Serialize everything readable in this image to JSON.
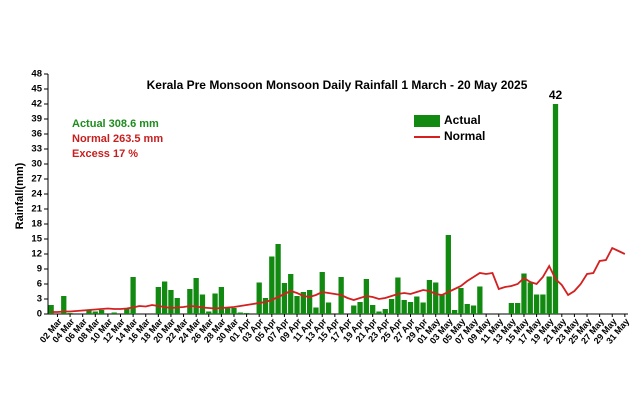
{
  "chart_data": {
    "type": "bar_line",
    "title": "Kerala Pre Monsoon  Monsoon Daily Rainfall 1 March - 20 May  2025",
    "y_label": "Rainfall(mm)",
    "annotations": [
      {
        "text": "Actual 308.6 mm",
        "color": "#1e8c1e"
      },
      {
        "text": "Normal 263.5 mm",
        "color": "#c81e1e"
      },
      {
        "text": "Excess  17 %",
        "color": "#c81e1e"
      }
    ],
    "categories": [
      null,
      "02 Mar",
      null,
      "04 Mar",
      null,
      "06 Mar",
      null,
      "08 Mar",
      null,
      "10 Mar",
      null,
      "12 Mar",
      null,
      "14 Mar",
      null,
      "16 Mar",
      null,
      "18 Mar",
      null,
      "20 Mar",
      null,
      "22 Mar",
      null,
      "24 Mar",
      null,
      "26 Mar",
      null,
      "28 Mar",
      null,
      "30 Mar",
      null,
      "01 Apr",
      null,
      "03 Apr",
      null,
      "05 Apr",
      null,
      "07 Apr",
      null,
      "09 Apr",
      null,
      "11 Apr",
      null,
      "13 Apr",
      null,
      "15 Apr",
      null,
      "17 Apr",
      null,
      "19 Apr",
      null,
      "21 Apr",
      null,
      "23 Apr",
      null,
      "25 Apr",
      null,
      "27 Apr",
      null,
      "29 Apr",
      null,
      "01 May",
      null,
      "03 May",
      null,
      "05 May",
      null,
      "07 May",
      null,
      "09 May",
      null,
      "11 May",
      null,
      "13 May",
      null,
      "15 May",
      null,
      "17 May",
      null,
      "19 May",
      null,
      "21 May",
      null,
      "23 May",
      null,
      "25 May",
      null,
      "27 May",
      null,
      "29 May",
      null,
      "31 May"
    ],
    "series": [
      {
        "name": "Actual",
        "kind": "bar",
        "color": "#128a12",
        "values": [
          1.8,
          0,
          3.6,
          0.2,
          0,
          0,
          0.8,
          0.5,
          0.8,
          0,
          0.3,
          0,
          1.0,
          7.4,
          0,
          0,
          0,
          5.4,
          6.5,
          4.8,
          3.2,
          0,
          5.0,
          7.2,
          3.9,
          0.5,
          4.1,
          5.4,
          1.2,
          1.2,
          0.3,
          0.2,
          0,
          6.3,
          3.2,
          11.5,
          14.0,
          6.2,
          8.0,
          3.6,
          4.4,
          4.8,
          1.3,
          8.4,
          2.3,
          0,
          7.4,
          0,
          1.7,
          2.4,
          7.0,
          1.8,
          0.5,
          1.0,
          3.0,
          7.3,
          2.8,
          2.4,
          3.5,
          2.3,
          6.8,
          6.3,
          3.8,
          15.8,
          0.8,
          5.2,
          2.0,
          1.7,
          5.5,
          0,
          0,
          0,
          0,
          2.2,
          2.2,
          8.1,
          6.3,
          3.9,
          3.9,
          7.5,
          42,
          null,
          null,
          null,
          null,
          null,
          null,
          null,
          null,
          null,
          null,
          null
        ]
      },
      {
        "name": "Normal",
        "kind": "line",
        "color": "#d42020",
        "values": [
          0.4,
          0.4,
          0.5,
          0.5,
          0.6,
          0.7,
          0.8,
          0.9,
          1.0,
          1.1,
          1.0,
          1.0,
          1.1,
          1.3,
          1.6,
          1.5,
          1.8,
          1.6,
          1.4,
          1.2,
          1.3,
          1.4,
          1.6,
          1.5,
          1.3,
          1.2,
          1.1,
          1.2,
          1.3,
          1.4,
          1.6,
          1.8,
          2.0,
          2.2,
          2.4,
          2.8,
          3.4,
          4.0,
          4.6,
          4.2,
          3.6,
          3.4,
          3.8,
          4.4,
          4.2,
          4.0,
          3.8,
          3.2,
          2.8,
          3.2,
          3.6,
          3.4,
          3.0,
          3.2,
          3.6,
          4.0,
          4.2,
          4.0,
          4.4,
          4.8,
          4.6,
          4.0,
          3.8,
          4.4,
          5.0,
          5.6,
          6.6,
          7.4,
          8.2,
          8.0,
          8.2,
          5.0,
          5.4,
          5.6,
          6.0,
          7.2,
          6.4,
          6.0,
          7.4,
          9.6,
          7.0,
          5.8,
          3.8,
          4.6,
          6.0,
          8.0,
          8.2,
          10.6,
          10.8,
          13.2,
          12.6,
          12.0
        ]
      }
    ],
    "ylim": [
      0,
      48
    ],
    "yticks": [
      0,
      3,
      6,
      9,
      12,
      15,
      18,
      21,
      24,
      27,
      30,
      33,
      36,
      39,
      42,
      45,
      48
    ]
  }
}
